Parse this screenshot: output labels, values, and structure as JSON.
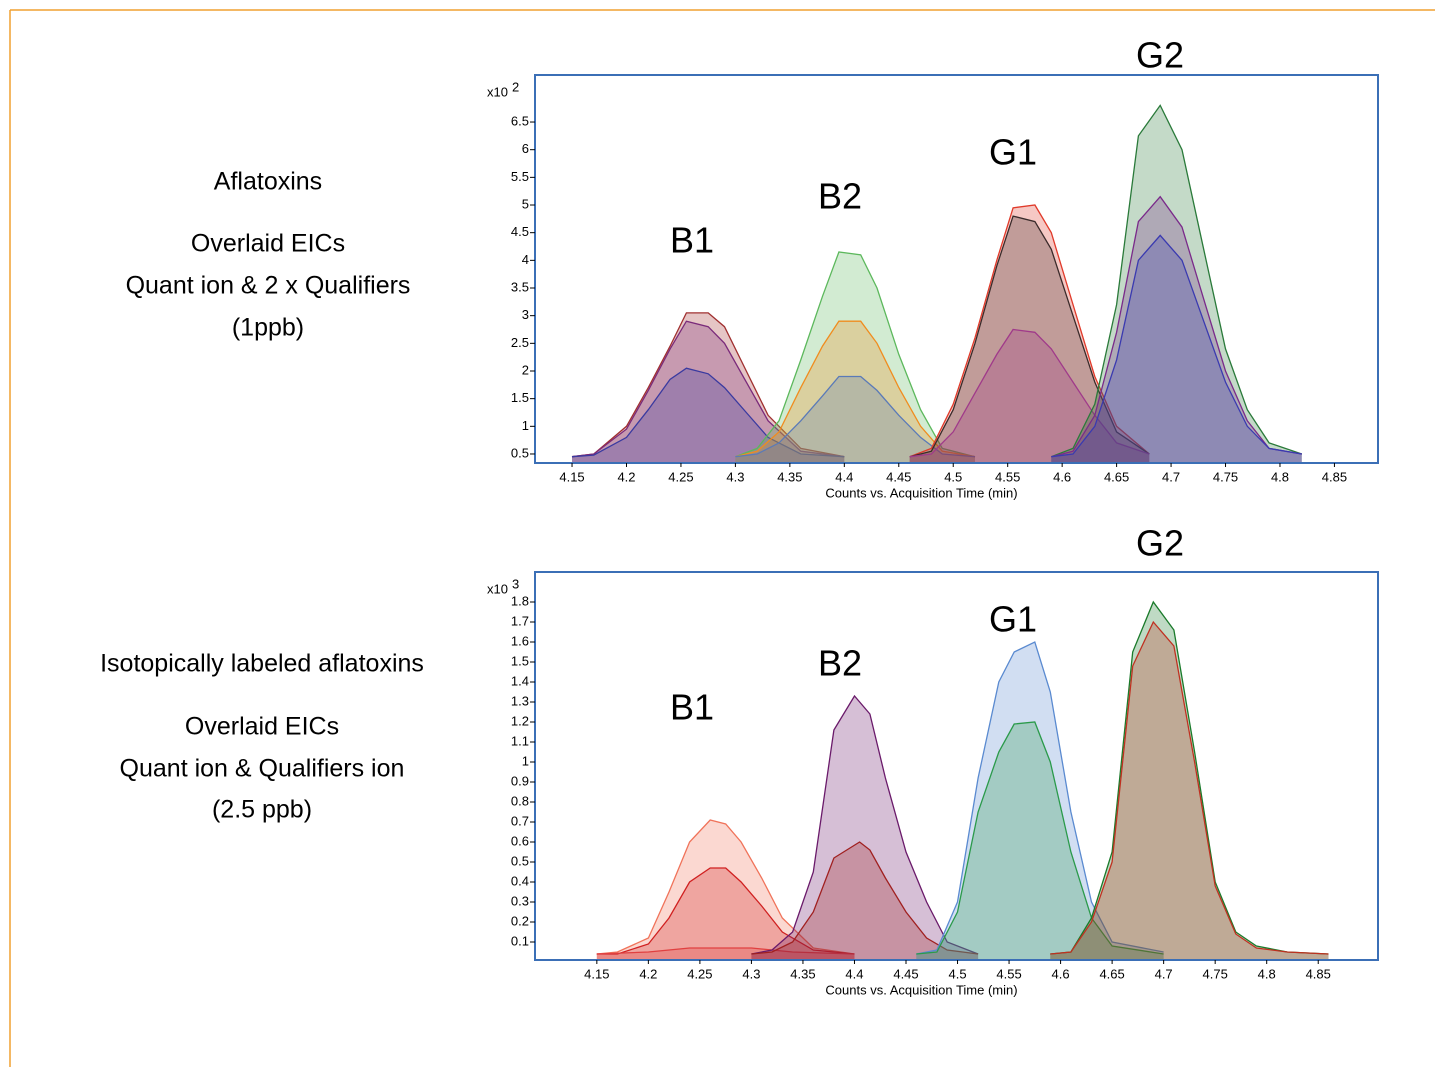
{
  "chart_data": [
    {
      "type": "area",
      "description": [
        "Aflatoxins",
        "Overlaid EICs",
        "Quant ion & 2 x Qualifiers",
        "(1ppb)"
      ],
      "x_label": "Counts vs. Acquisition Time (min)",
      "y_scale_label": "x10",
      "y_scale_exponent": "2",
      "annotations": [
        "B1",
        "B2",
        "G1",
        "G2"
      ],
      "xlim": [
        4.116,
        4.89
      ],
      "ylim": [
        0.337,
        7.35
      ],
      "xticks": [
        4.15,
        4.2,
        4.25,
        4.3,
        4.35,
        4.4,
        4.45,
        4.5,
        4.55,
        4.6,
        4.65,
        4.7,
        4.75,
        4.8,
        4.85
      ],
      "yticks": [
        0.5,
        1,
        1.5,
        2,
        2.5,
        3,
        3.5,
        4,
        4.5,
        5,
        5.5,
        6,
        6.5
      ],
      "series": [
        {
          "color": "#a03030",
          "x": [
            4.15,
            4.17,
            4.2,
            4.22,
            4.24,
            4.255,
            4.275,
            4.29,
            4.31,
            4.33,
            4.36,
            4.4
          ],
          "values": [
            0.45,
            0.5,
            1.0,
            1.7,
            2.45,
            3.05,
            3.05,
            2.8,
            2.0,
            1.2,
            0.6,
            0.45
          ]
        },
        {
          "color": "#7a2a7a",
          "x": [
            4.15,
            4.17,
            4.2,
            4.22,
            4.24,
            4.255,
            4.275,
            4.29,
            4.31,
            4.33,
            4.36,
            4.4
          ],
          "values": [
            0.45,
            0.5,
            0.95,
            1.65,
            2.4,
            2.9,
            2.8,
            2.5,
            1.8,
            1.1,
            0.55,
            0.45
          ]
        },
        {
          "color": "#3a3aa0",
          "x": [
            4.15,
            4.17,
            4.2,
            4.22,
            4.24,
            4.255,
            4.275,
            4.29,
            4.31,
            4.33,
            4.36,
            4.4
          ],
          "values": [
            0.45,
            0.48,
            0.8,
            1.3,
            1.85,
            2.05,
            1.95,
            1.7,
            1.25,
            0.8,
            0.5,
            0.45
          ]
        },
        {
          "color": "#5cb85c",
          "x": [
            4.3,
            4.32,
            4.34,
            4.36,
            4.38,
            4.395,
            4.415,
            4.43,
            4.45,
            4.47,
            4.49,
            4.52
          ],
          "values": [
            0.45,
            0.6,
            1.1,
            2.2,
            3.35,
            4.15,
            4.1,
            3.5,
            2.3,
            1.3,
            0.6,
            0.45
          ]
        },
        {
          "color": "#f08c1e",
          "x": [
            4.3,
            4.32,
            4.34,
            4.36,
            4.38,
            4.395,
            4.415,
            4.43,
            4.45,
            4.47,
            4.49,
            4.52
          ],
          "values": [
            0.45,
            0.55,
            0.9,
            1.7,
            2.45,
            2.9,
            2.9,
            2.5,
            1.7,
            1.0,
            0.55,
            0.45
          ]
        },
        {
          "color": "#5a7ab8",
          "x": [
            4.3,
            4.32,
            4.34,
            4.36,
            4.38,
            4.395,
            4.415,
            4.43,
            4.45,
            4.47,
            4.49,
            4.52
          ],
          "values": [
            0.45,
            0.5,
            0.7,
            1.1,
            1.55,
            1.9,
            1.9,
            1.65,
            1.2,
            0.8,
            0.5,
            0.45
          ]
        },
        {
          "color": "#e03a2a",
          "x": [
            4.46,
            4.48,
            4.5,
            4.52,
            4.54,
            4.555,
            4.575,
            4.59,
            4.61,
            4.63,
            4.65,
            4.68
          ],
          "values": [
            0.45,
            0.6,
            1.4,
            2.6,
            4.0,
            4.95,
            5.0,
            4.5,
            3.2,
            1.9,
            1.0,
            0.5
          ]
        },
        {
          "color": "#3a2a2a",
          "x": [
            4.46,
            4.48,
            4.5,
            4.52,
            4.54,
            4.555,
            4.575,
            4.59,
            4.61,
            4.63,
            4.65,
            4.68
          ],
          "values": [
            0.45,
            0.55,
            1.3,
            2.5,
            3.9,
            4.8,
            4.7,
            4.2,
            3.0,
            1.8,
            0.9,
            0.5
          ]
        },
        {
          "color": "#a03a8a",
          "x": [
            4.46,
            4.48,
            4.5,
            4.52,
            4.54,
            4.555,
            4.575,
            4.59,
            4.61,
            4.63,
            4.65,
            4.68
          ],
          "values": [
            0.45,
            0.5,
            0.9,
            1.6,
            2.3,
            2.75,
            2.7,
            2.4,
            1.8,
            1.2,
            0.7,
            0.5
          ]
        },
        {
          "color": "#2a7a3a",
          "x": [
            4.59,
            4.61,
            4.63,
            4.65,
            4.67,
            4.69,
            4.71,
            4.73,
            4.75,
            4.77,
            4.79,
            4.82
          ],
          "values": [
            0.45,
            0.6,
            1.4,
            3.2,
            6.25,
            6.8,
            6.0,
            4.2,
            2.4,
            1.3,
            0.7,
            0.5
          ]
        },
        {
          "color": "#7a2a8a",
          "x": [
            4.59,
            4.61,
            4.63,
            4.65,
            4.67,
            4.69,
            4.71,
            4.73,
            4.75,
            4.77,
            4.79,
            4.82
          ],
          "values": [
            0.45,
            0.55,
            1.2,
            2.7,
            4.7,
            5.15,
            4.6,
            3.3,
            2.0,
            1.1,
            0.6,
            0.5
          ]
        },
        {
          "color": "#3a3ab0",
          "x": [
            4.59,
            4.61,
            4.63,
            4.65,
            4.67,
            4.69,
            4.71,
            4.73,
            4.75,
            4.77,
            4.79,
            4.82
          ],
          "values": [
            0.45,
            0.5,
            1.0,
            2.2,
            4.0,
            4.45,
            4.0,
            2.9,
            1.8,
            1.0,
            0.6,
            0.5
          ]
        }
      ]
    },
    {
      "type": "area",
      "description": [
        "Isotopically labeled aflatoxins",
        "Overlaid EICs",
        "Quant ion & Qualifiers ion",
        "(2.5 ppb)"
      ],
      "x_label": "Counts vs. Acquisition Time (min)",
      "y_scale_label": "x10",
      "y_scale_exponent": "3",
      "annotations": [
        "B1",
        "B2",
        "G1",
        "G2"
      ],
      "xlim": [
        4.09,
        4.908
      ],
      "ylim": [
        0.01,
        1.95
      ],
      "xticks": [
        4.15,
        4.2,
        4.25,
        4.3,
        4.35,
        4.4,
        4.45,
        4.5,
        4.55,
        4.6,
        4.65,
        4.7,
        4.75,
        4.8,
        4.85
      ],
      "yticks": [
        0.1,
        0.2,
        0.3,
        0.4,
        0.5,
        0.6,
        0.7,
        0.8,
        0.9,
        1,
        1.1,
        1.2,
        1.3,
        1.4,
        1.5,
        1.6,
        1.7,
        1.8
      ],
      "series": [
        {
          "color": "#f0735a",
          "x": [
            4.15,
            4.17,
            4.2,
            4.22,
            4.24,
            4.26,
            4.275,
            4.29,
            4.31,
            4.33,
            4.36,
            4.4
          ],
          "values": [
            0.04,
            0.05,
            0.12,
            0.35,
            0.6,
            0.71,
            0.69,
            0.6,
            0.42,
            0.22,
            0.07,
            0.04
          ]
        },
        {
          "color": "#d02020",
          "x": [
            4.15,
            4.17,
            4.2,
            4.22,
            4.24,
            4.26,
            4.275,
            4.29,
            4.31,
            4.33,
            4.36,
            4.4
          ],
          "values": [
            0.04,
            0.04,
            0.09,
            0.22,
            0.4,
            0.47,
            0.47,
            0.4,
            0.28,
            0.15,
            0.06,
            0.04
          ]
        },
        {
          "color": "#e04040",
          "x": [
            4.15,
            4.2,
            4.24,
            4.26,
            4.3,
            4.34,
            4.4
          ],
          "values": [
            0.04,
            0.05,
            0.07,
            0.07,
            0.07,
            0.05,
            0.04
          ]
        },
        {
          "color": "#6a1a6a",
          "x": [
            4.3,
            4.32,
            4.34,
            4.36,
            4.38,
            4.4,
            4.415,
            4.43,
            4.45,
            4.47,
            4.49,
            4.52
          ],
          "values": [
            0.04,
            0.06,
            0.15,
            0.45,
            1.16,
            1.33,
            1.24,
            0.92,
            0.55,
            0.3,
            0.1,
            0.04
          ]
        },
        {
          "color": "#a02020",
          "x": [
            4.3,
            4.32,
            4.34,
            4.36,
            4.38,
            4.405,
            4.415,
            4.43,
            4.45,
            4.47,
            4.49,
            4.52
          ],
          "values": [
            0.04,
            0.05,
            0.1,
            0.25,
            0.52,
            0.6,
            0.56,
            0.42,
            0.25,
            0.12,
            0.06,
            0.04
          ]
        },
        {
          "color": "#5a8ad0",
          "x": [
            4.46,
            4.48,
            4.5,
            4.52,
            4.54,
            4.555,
            4.575,
            4.59,
            4.61,
            4.63,
            4.65,
            4.7
          ],
          "values": [
            0.04,
            0.06,
            0.3,
            0.92,
            1.4,
            1.55,
            1.6,
            1.35,
            0.75,
            0.3,
            0.1,
            0.05
          ]
        },
        {
          "color": "#2a9a4a",
          "x": [
            4.46,
            4.48,
            4.5,
            4.52,
            4.54,
            4.555,
            4.575,
            4.59,
            4.61,
            4.63,
            4.65,
            4.7
          ],
          "values": [
            0.04,
            0.05,
            0.25,
            0.75,
            1.05,
            1.19,
            1.2,
            1.0,
            0.55,
            0.22,
            0.08,
            0.04
          ]
        },
        {
          "color": "#1a7a2a",
          "x": [
            4.59,
            4.61,
            4.63,
            4.65,
            4.67,
            4.69,
            4.71,
            4.73,
            4.75,
            4.77,
            4.79,
            4.82,
            4.86
          ],
          "values": [
            0.04,
            0.05,
            0.22,
            0.55,
            1.55,
            1.8,
            1.66,
            1.05,
            0.4,
            0.15,
            0.08,
            0.05,
            0.04
          ]
        },
        {
          "color": "#c03020",
          "x": [
            4.59,
            4.61,
            4.63,
            4.65,
            4.67,
            4.69,
            4.71,
            4.73,
            4.75,
            4.77,
            4.79,
            4.82,
            4.86
          ],
          "values": [
            0.04,
            0.05,
            0.2,
            0.5,
            1.48,
            1.7,
            1.58,
            1.0,
            0.38,
            0.14,
            0.07,
            0.05,
            0.04
          ]
        }
      ]
    }
  ]
}
